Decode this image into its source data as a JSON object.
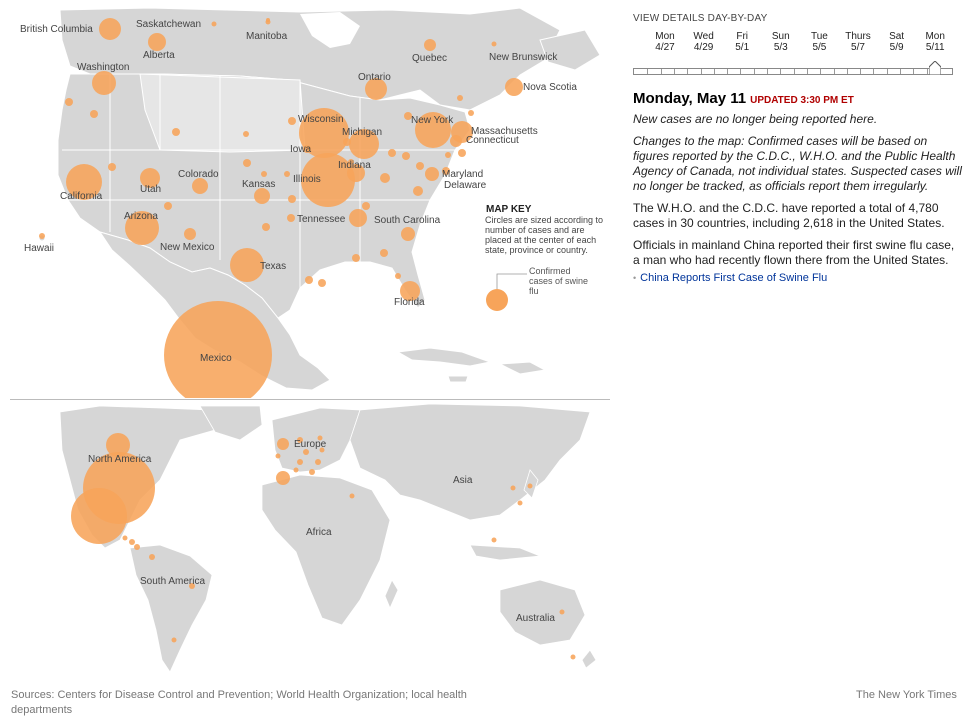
{
  "timeline": {
    "title": "VIEW DETAILS DAY-BY-DAY",
    "days": [
      {
        "day": "Mon",
        "date": "4/27"
      },
      {
        "day": "Wed",
        "date": "4/29"
      },
      {
        "day": "Fri",
        "date": "5/1"
      },
      {
        "day": "Sun",
        "date": "5/3"
      },
      {
        "day": "Tue",
        "date": "5/5"
      },
      {
        "day": "Thurs",
        "date": "5/7"
      },
      {
        "day": "Sat",
        "date": "5/9"
      },
      {
        "day": "Mon",
        "date": "5/11"
      }
    ],
    "selected_index": 7
  },
  "heading": {
    "date": "Monday, May 11",
    "updated": "UPDATED 3:30 PM ET"
  },
  "notes": {
    "no_new": "New cases are no longer being reported here.",
    "changes": "Changes to the map: Confirmed cases will be based on figures reported by the C.D.C., W.H.O. and the Public Health Agency of Canada, not individual states. Suspected cases will no longer be tracked, as officials report them irregularly.",
    "total": "The W.H.O. and the C.D.C. have reported a total of 4,780 cases in 30 countries, including 2,618 in the United States.",
    "china": "Officials in mainland China reported their first swine flu case, a man who had recently flown there from the United States."
  },
  "link": {
    "text": "China Reports First Case of Swine Flu"
  },
  "map_key": {
    "title": "MAP KEY",
    "description": "Circles are sized according to number of cases and are placed at the center of each state, province or country.",
    "legend": "Confirmed cases of swine flu"
  },
  "colors": {
    "circle": "#f7a45a",
    "land": "#d6d6d6",
    "land_dark": "#c8c8c8",
    "highlight_land": "#e6e6e6",
    "updated": "#b00000",
    "link": "#00349a"
  },
  "us_labels": {
    "british_columbia": "British Columbia",
    "saskatchewan": "Saskatchewan",
    "manitoba": "Manitoba",
    "alberta": "Alberta",
    "quebec": "Quebec",
    "new_brunswick": "New Brunswick",
    "washington": "Washington",
    "ontario": "Ontario",
    "nova_scotia": "Nova Scotia",
    "wisconsin": "Wisconsin",
    "michigan": "Michigan",
    "new_york": "New York",
    "massachusetts": "Massachusetts",
    "connecticut": "Connecticut",
    "iowa": "Iowa",
    "indiana": "Indiana",
    "illinois": "Illinois",
    "maryland": "Maryland",
    "delaware": "Delaware",
    "california": "California",
    "utah": "Utah",
    "colorado": "Colorado",
    "kansas": "Kansas",
    "arizona": "Arizona",
    "tennessee": "Tennessee",
    "south_carolina": "South Carolina",
    "hawaii": "Hawaii",
    "new_mexico": "New Mexico",
    "texas": "Texas",
    "florida": "Florida",
    "mexico": "Mexico"
  },
  "world_labels": {
    "north_america": "North America",
    "europe": "Europe",
    "asia": "Asia",
    "africa": "Africa",
    "south_america": "South America",
    "australia": "Australia"
  },
  "footer": {
    "sources": "Sources: Centers for Disease Control and Prevention; World Health Organization; local health departments",
    "credit": "The New York Times"
  }
}
